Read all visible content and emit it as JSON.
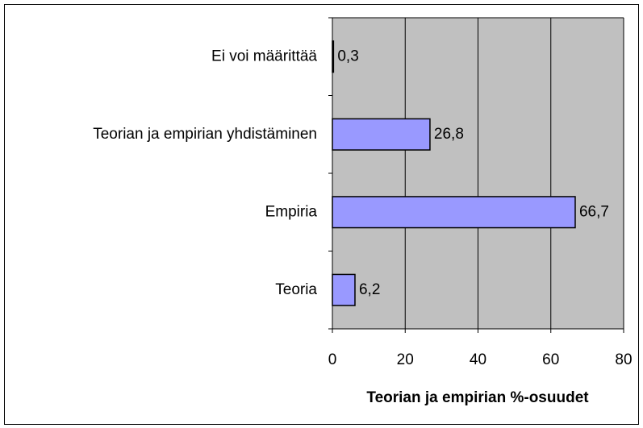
{
  "chart_data": {
    "type": "hbar",
    "x_label": "Teorian ja empirian %-osuudet",
    "categories": [
      "Ei voi määrittää",
      "Teorian ja empirian yhdistäminen",
      "Empiria",
      "Teoria"
    ],
    "values": [
      0.3,
      26.8,
      66.7,
      6.2
    ],
    "value_labels": [
      "0,3",
      "26,8",
      "66,7",
      "6,2"
    ],
    "color": "#9999ff",
    "xlim": [
      0,
      80
    ],
    "xticks": [
      0,
      20,
      40,
      60,
      80
    ],
    "grid": true
  }
}
